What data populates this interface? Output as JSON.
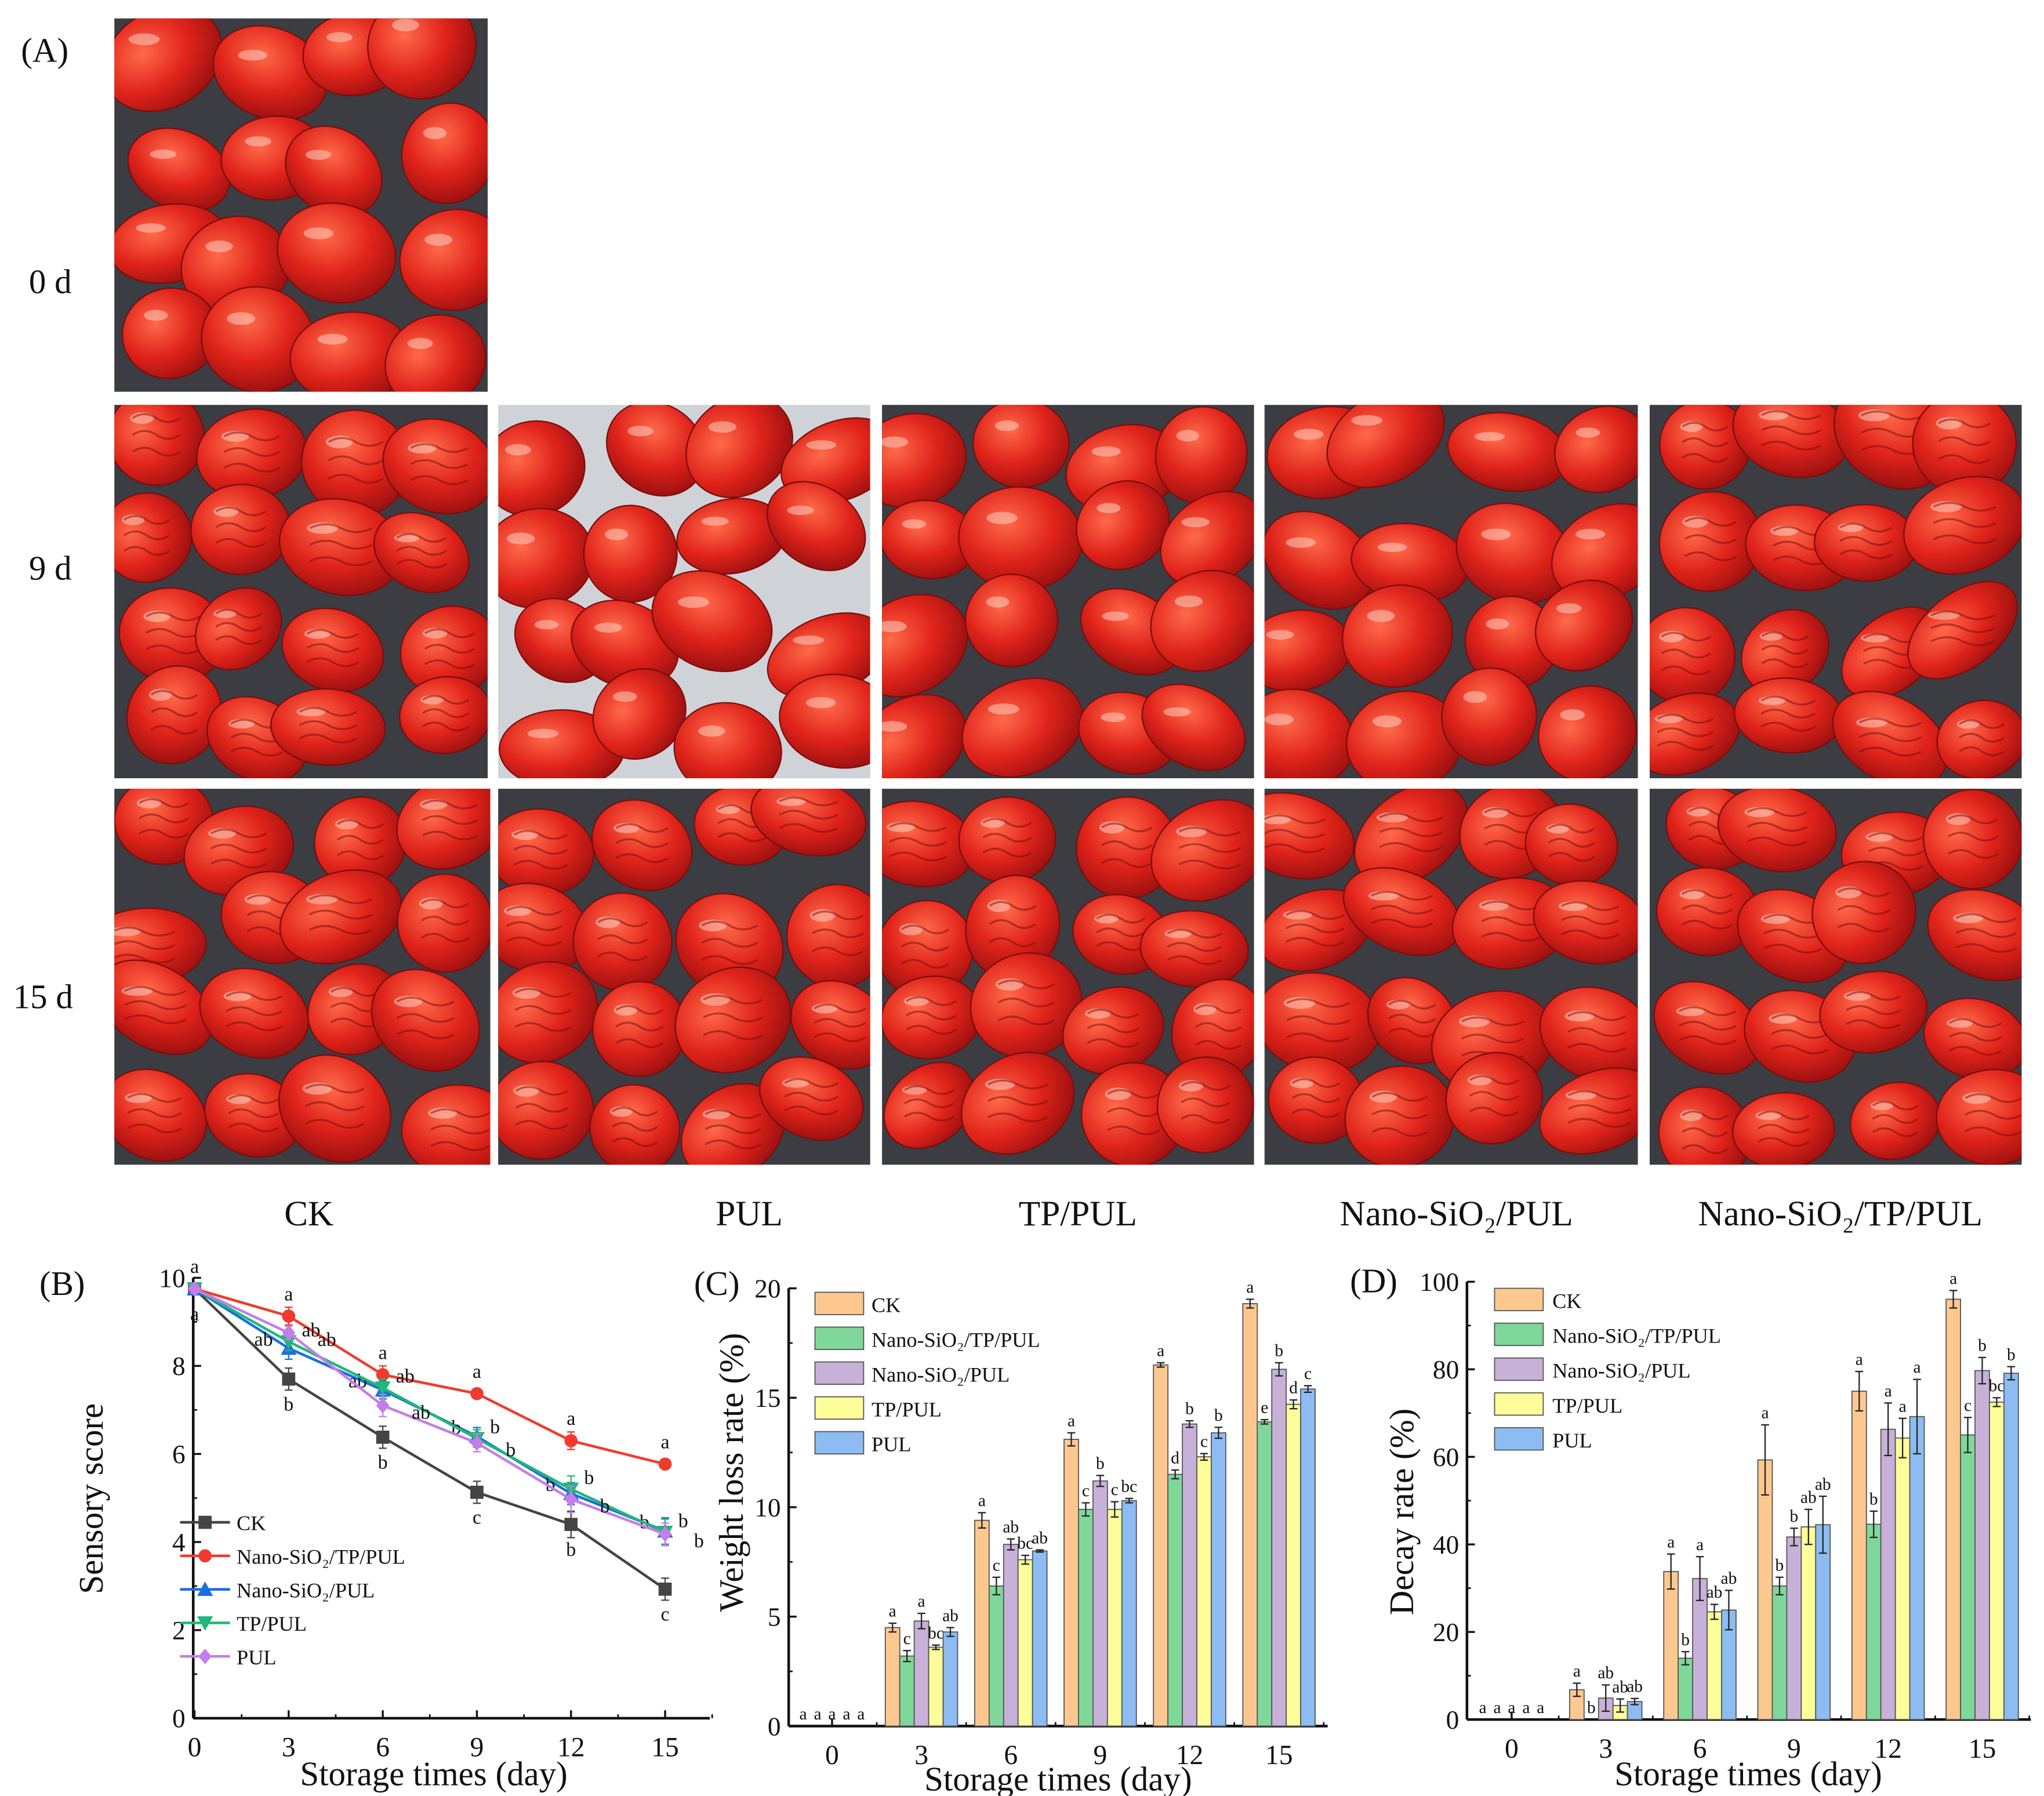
{
  "panel_labels": {
    "a": "(A)",
    "b": "(B)",
    "c": "(C)",
    "d": "(D)"
  },
  "row_labels": [
    "0 d",
    "9 d",
    "15 d"
  ],
  "column_labels": [
    "CK",
    "PUL",
    "TP/PUL",
    "Nano-SiO₂/PUL",
    "Nano-SiO₂/TP/PUL"
  ],
  "chart_data": [
    {
      "id": "B",
      "type": "line",
      "title": "",
      "xlabel": "Storage times (day)",
      "ylabel": "Sensory score",
      "x": [
        0,
        3,
        6,
        9,
        12,
        15
      ],
      "x_ticks": [
        "0",
        "3",
        "6",
        "9",
        "12",
        "15"
      ],
      "ylim": [
        0,
        10
      ],
      "y_ticks": [
        "0",
        "2",
        "4",
        "6",
        "8",
        "10"
      ],
      "y_tick_values": [
        0,
        2,
        4,
        6,
        8,
        10
      ],
      "legend_position": "bottom-left",
      "series": [
        {
          "name": "CK",
          "color": "#444444",
          "marker": "square",
          "values": [
            9.75,
            7.7,
            6.38,
            5.13,
            4.4,
            2.93
          ],
          "errors": [
            0.1,
            0.25,
            0.25,
            0.25,
            0.3,
            0.25
          ],
          "letters": [
            "a",
            "b",
            "b",
            "c",
            "b",
            "c"
          ],
          "letter_pos": "below"
        },
        {
          "name": "Nano-SiO₂/TP/PUL",
          "color": "#f03a2e",
          "marker": "circle",
          "values": [
            9.75,
            9.13,
            7.8,
            7.37,
            6.3,
            5.77
          ],
          "errors": [
            0.1,
            0.2,
            0.2,
            0.1,
            0.2,
            0.1
          ],
          "letters": [
            "a",
            "a",
            "a",
            "a",
            "a",
            "a"
          ],
          "letter_pos": "above"
        },
        {
          "name": "Nano-SiO₂/PUL",
          "color": "#1a6fe0",
          "marker": "triangle-up",
          "values": [
            9.75,
            8.4,
            7.45,
            6.4,
            5.1,
            4.25
          ],
          "errors": [
            0.1,
            0.25,
            0.2,
            0.2,
            0.25,
            0.3
          ],
          "letters": [
            "",
            "ab",
            "ab",
            "b",
            "b",
            "b"
          ],
          "letter_pos": "left"
        },
        {
          "name": "TP/PUL",
          "color": "#1fb878",
          "marker": "triangle-down",
          "values": [
            9.75,
            8.55,
            7.5,
            6.35,
            5.2,
            4.22
          ],
          "errors": [
            0.1,
            0.2,
            0.2,
            0.2,
            0.3,
            0.3
          ],
          "letters": [
            "",
            "ab",
            "ab",
            "b",
            "b",
            "b"
          ],
          "letter_pos": "right"
        },
        {
          "name": "PUL",
          "color": "#c47ee8",
          "marker": "diamond",
          "values": [
            9.75,
            8.75,
            7.1,
            6.25,
            4.97,
            4.18
          ],
          "errors": [
            0.1,
            0.15,
            0.25,
            0.2,
            0.3,
            0.25
          ],
          "letters": [
            "",
            "ab",
            "ab",
            "b",
            "b",
            "b"
          ],
          "letter_pos": "right2"
        }
      ]
    },
    {
      "id": "C",
      "type": "bar",
      "title": "",
      "xlabel": "Storage times (day)",
      "ylabel": "Weight loss rate (%)",
      "categories": [
        "0",
        "3",
        "6",
        "9",
        "12",
        "15"
      ],
      "ylim": [
        0,
        20
      ],
      "y_ticks": [
        "0",
        "5",
        "10",
        "15",
        "20"
      ],
      "y_tick_values": [
        0,
        5,
        10,
        15,
        20
      ],
      "legend_position": "top-left",
      "series": [
        {
          "name": "CK",
          "color": "#fdc890",
          "values": [
            0,
            4.5,
            9.4,
            13.1,
            16.5,
            19.3
          ],
          "errors": [
            0,
            0.2,
            0.35,
            0.3,
            0.1,
            0.2
          ],
          "letters": [
            "a",
            "a",
            "a",
            "a",
            "a",
            "a"
          ]
        },
        {
          "name": "Nano-SiO₂/TP/PUL",
          "color": "#7fd89a",
          "values": [
            0,
            3.2,
            6.4,
            9.9,
            11.5,
            13.9
          ],
          "errors": [
            0,
            0.25,
            0.4,
            0.3,
            0.2,
            0.1
          ],
          "letters": [
            "a",
            "c",
            "c",
            "c",
            "d",
            "e"
          ]
        },
        {
          "name": "Nano-SiO₂/PUL",
          "color": "#c8b1d8",
          "values": [
            0,
            4.8,
            8.3,
            11.2,
            13.8,
            16.3
          ],
          "errors": [
            0,
            0.35,
            0.25,
            0.25,
            0.15,
            0.3
          ],
          "letters": [
            "a",
            "a",
            "ab",
            "b",
            "b",
            "b"
          ]
        },
        {
          "name": "TP/PUL",
          "color": "#fdfd9a",
          "values": [
            0,
            3.6,
            7.6,
            9.9,
            12.3,
            14.7
          ],
          "errors": [
            0,
            0.1,
            0.2,
            0.35,
            0.15,
            0.2
          ],
          "letters": [
            "a",
            "bc",
            "bc",
            "c",
            "c",
            "d"
          ]
        },
        {
          "name": "PUL",
          "color": "#8cbcf2",
          "values": [
            0,
            4.3,
            8.0,
            10.3,
            13.4,
            15.4
          ],
          "errors": [
            0,
            0.2,
            0.05,
            0.1,
            0.25,
            0.15
          ],
          "letters": [
            "a",
            "ab",
            "ab",
            "bc",
            "b",
            "c"
          ]
        }
      ]
    },
    {
      "id": "D",
      "type": "bar",
      "title": "",
      "xlabel": "Storage times (day)",
      "ylabel": "Decay rate (%)",
      "categories": [
        "0",
        "3",
        "6",
        "9",
        "12",
        "15"
      ],
      "ylim": [
        0,
        100
      ],
      "y_ticks": [
        "0",
        "20",
        "40",
        "60",
        "80",
        "100"
      ],
      "y_tick_values": [
        0,
        20,
        40,
        60,
        80,
        100
      ],
      "legend_position": "top-left",
      "series": [
        {
          "name": "CK",
          "color": "#fdc890",
          "values": [
            0,
            6.8,
            33.8,
            59.3,
            75,
            96
          ],
          "errors": [
            0,
            1.5,
            4,
            8,
            4.5,
            2
          ],
          "letters": [
            "a",
            "a",
            "a",
            "a",
            "a",
            "a"
          ]
        },
        {
          "name": "Nano-SiO₂/TP/PUL",
          "color": "#7fd89a",
          "values": [
            0,
            0,
            14,
            30.5,
            44.6,
            65
          ],
          "errors": [
            0,
            0,
            1.5,
            2,
            3,
            4
          ],
          "letters": [
            "a",
            "b",
            "b",
            "b",
            "b",
            "c"
          ]
        },
        {
          "name": "Nano-SiO₂/PUL",
          "color": "#c8b1d8",
          "values": [
            0,
            4.9,
            32.2,
            41.7,
            66.3,
            79.7
          ],
          "errors": [
            0,
            3,
            5,
            2,
            6,
            3
          ],
          "letters": [
            "a",
            "ab",
            "a",
            "b",
            "a",
            "b"
          ]
        },
        {
          "name": "TP/PUL",
          "color": "#fdfd9a",
          "values": [
            0,
            3.2,
            24.6,
            44,
            64.3,
            72.5
          ],
          "errors": [
            0,
            1.5,
            1.7,
            4,
            4.5,
            1
          ],
          "letters": [
            "a",
            "ab",
            "ab",
            "ab",
            "a",
            "bc"
          ]
        },
        {
          "name": "PUL",
          "color": "#8cbcf2",
          "values": [
            0,
            4.1,
            25,
            44.5,
            69.2,
            79.1
          ],
          "errors": [
            0,
            0.7,
            4.5,
            6.5,
            8.5,
            1.5
          ],
          "letters": [
            "a",
            "ab",
            "ab",
            "ab",
            "a",
            "b"
          ]
        }
      ]
    }
  ]
}
